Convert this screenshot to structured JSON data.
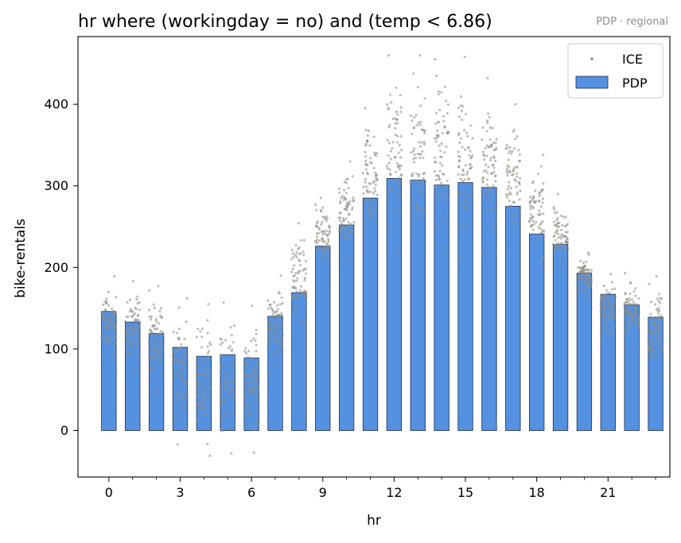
{
  "chart_data": {
    "type": "bar",
    "title": "hr where (workingday = no) and (temp < 6.86)",
    "subtitle": "PDP · regional",
    "xlabel": "hr",
    "ylabel": "bike-rentals",
    "xlim": [
      -1.3,
      23.6
    ],
    "ylim": [
      -57,
      483
    ],
    "x_ticks": [
      0,
      3,
      6,
      9,
      12,
      15,
      18,
      21
    ],
    "x_minor_ticks": [
      1,
      2,
      4,
      5,
      7,
      8,
      10,
      11,
      13,
      14,
      16,
      17,
      19,
      20,
      22,
      23
    ],
    "y_ticks": [
      0,
      100,
      200,
      300,
      400
    ],
    "grid": false,
    "legend": {
      "placement": "top-right",
      "entries": [
        "ICE",
        "PDP"
      ]
    },
    "colors": {
      "bar_fill": "#5591e1",
      "bar_edge": "#1f2d4a",
      "ice_points": "#8c8c84",
      "subtitle": "#8c8c8c"
    },
    "categories": [
      0,
      1,
      2,
      3,
      4,
      5,
      6,
      7,
      8,
      9,
      10,
      11,
      12,
      13,
      14,
      15,
      16,
      17,
      18,
      19,
      20,
      21,
      22,
      23
    ],
    "series": [
      {
        "name": "PDP",
        "values": [
          146,
          133,
          119,
          102,
          91,
          93,
          89,
          140,
          169,
          226,
          252,
          285,
          309,
          307,
          301,
          304,
          298,
          275,
          241,
          228,
          193,
          167,
          154,
          139
        ]
      }
    ],
    "ice_ranges": [
      {
        "x": 0,
        "min": 75,
        "max": 189
      },
      {
        "x": 1,
        "min": 72,
        "max": 183
      },
      {
        "x": 2,
        "min": 45,
        "max": 177
      },
      {
        "x": 3,
        "min": -17,
        "max": 162
      },
      {
        "x": 4,
        "min": -31,
        "max": 155
      },
      {
        "x": 5,
        "min": -28,
        "max": 157
      },
      {
        "x": 6,
        "min": -27,
        "max": 153
      },
      {
        "x": 7,
        "min": 70,
        "max": 190
      },
      {
        "x": 8,
        "min": 105,
        "max": 254
      },
      {
        "x": 9,
        "min": 185,
        "max": 285
      },
      {
        "x": 10,
        "min": 210,
        "max": 330
      },
      {
        "x": 11,
        "min": 225,
        "max": 395
      },
      {
        "x": 12,
        "min": 218,
        "max": 460
      },
      {
        "x": 13,
        "min": 225,
        "max": 460
      },
      {
        "x": 14,
        "min": 222,
        "max": 455
      },
      {
        "x": 15,
        "min": 212,
        "max": 458
      },
      {
        "x": 16,
        "min": 215,
        "max": 432
      },
      {
        "x": 17,
        "min": 218,
        "max": 400
      },
      {
        "x": 18,
        "min": 200,
        "max": 338
      },
      {
        "x": 19,
        "min": 195,
        "max": 290
      },
      {
        "x": 20,
        "min": 160,
        "max": 218
      },
      {
        "x": 21,
        "min": 110,
        "max": 192
      },
      {
        "x": 22,
        "min": 100,
        "max": 193
      },
      {
        "x": 23,
        "min": 70,
        "max": 189
      }
    ]
  }
}
